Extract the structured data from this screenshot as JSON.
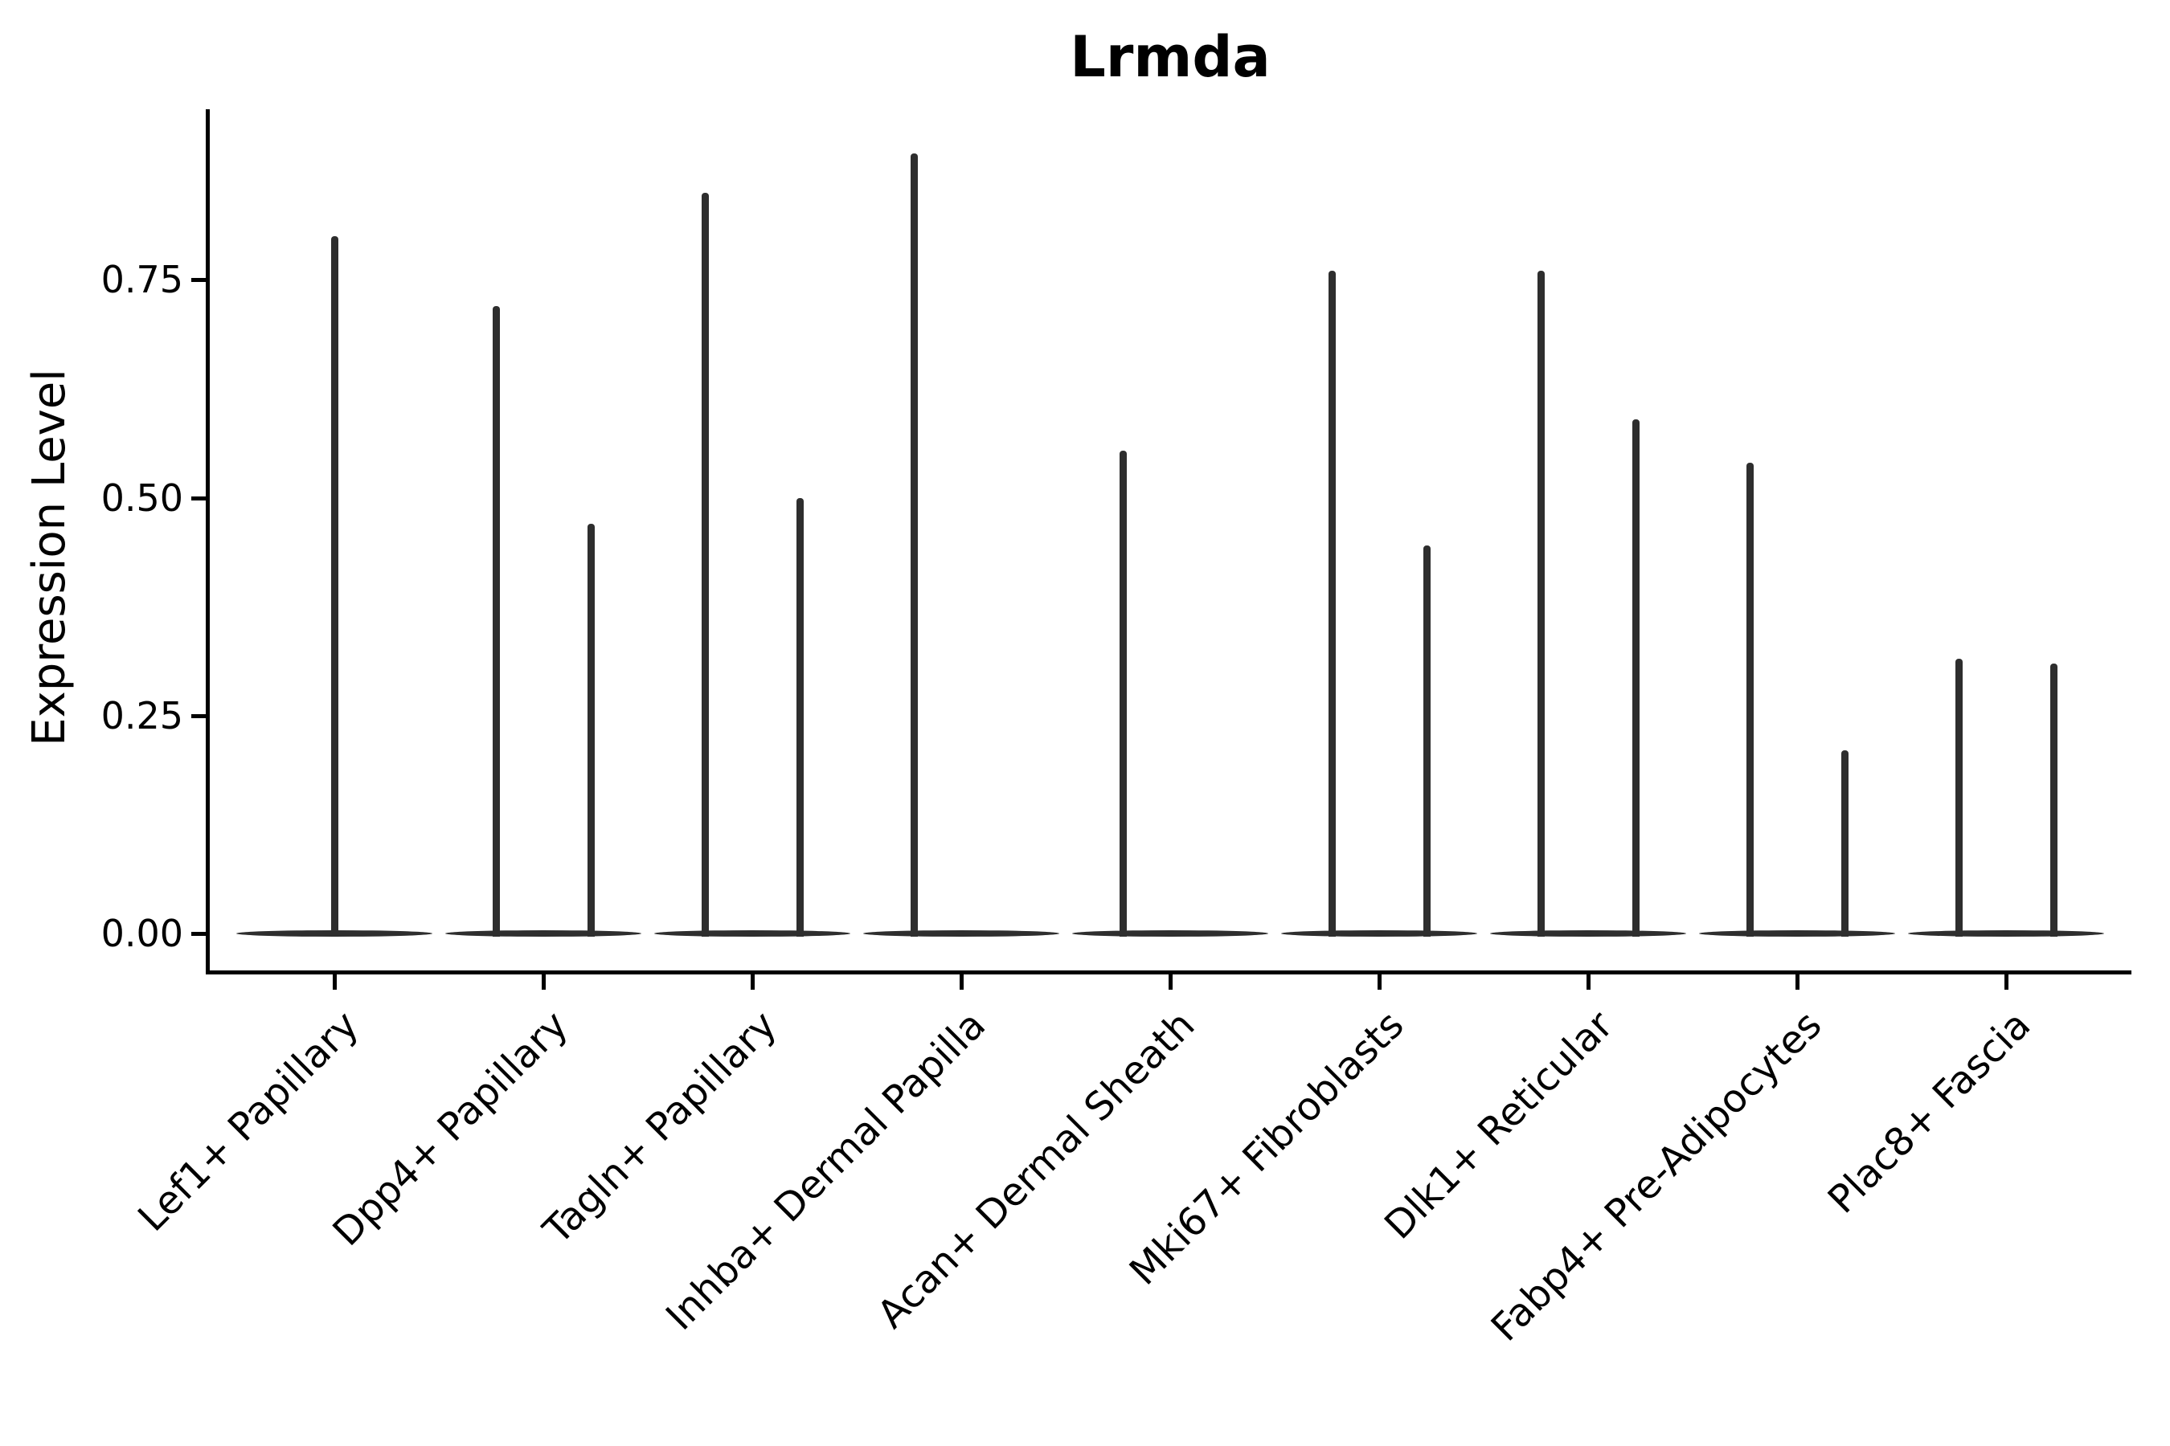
{
  "chart_data": {
    "type": "violin",
    "title": "Lrmda",
    "ylabel": "Expression Level",
    "xlabel": "",
    "yticks": {
      "labels": [
        "0.00",
        "0.25",
        "0.50",
        "0.75"
      ],
      "values": [
        0.0,
        0.25,
        0.5,
        0.75
      ]
    },
    "ylim": [
      -0.045,
      0.943
    ],
    "grid": false,
    "legend": "none",
    "violin_color": "#2e2e2e",
    "axis_color": "#000000",
    "categories": [
      "Lef1+ Papillary",
      "Dpp4+ Papillary",
      "Tagln+ Papillary",
      "Inhba+ Dermal Papilla",
      "Acan+ Dermal Sheath",
      "Mki67+ Fibroblasts",
      "Dlk1+ Reticular",
      "Fabp4+ Pre-Adipocytes",
      "Plac8+ Fascia"
    ],
    "groups": [
      {
        "label": "Lef1+ Papillary",
        "violins": [
          {
            "position": "center",
            "max_expression": 0.8
          }
        ]
      },
      {
        "label": "Dpp4+ Papillary",
        "violins": [
          {
            "position": "left",
            "max_expression": 0.72
          },
          {
            "position": "right",
            "max_expression": 0.47
          }
        ]
      },
      {
        "label": "Tagln+ Papillary",
        "violins": [
          {
            "position": "left",
            "max_expression": 0.85
          },
          {
            "position": "right",
            "max_expression": 0.5
          }
        ]
      },
      {
        "label": "Inhba+ Dermal Papilla",
        "violins": [
          {
            "position": "left",
            "max_expression": 0.895
          }
        ]
      },
      {
        "label": "Acan+ Dermal Sheath",
        "violins": [
          {
            "position": "left",
            "max_expression": 0.554
          }
        ]
      },
      {
        "label": "Mki67+ Fibroblasts",
        "violins": [
          {
            "position": "left",
            "max_expression": 0.76
          },
          {
            "position": "right",
            "max_expression": 0.445
          }
        ]
      },
      {
        "label": "Dlk1+ Reticular",
        "violins": [
          {
            "position": "left",
            "max_expression": 0.76
          },
          {
            "position": "right",
            "max_expression": 0.59
          }
        ]
      },
      {
        "label": "Fabp4+ Pre-Adipocytes",
        "violins": [
          {
            "position": "left",
            "max_expression": 0.54
          },
          {
            "position": "right",
            "max_expression": 0.21
          }
        ]
      },
      {
        "label": "Plac8+ Fascia",
        "violins": [
          {
            "position": "left",
            "max_expression": 0.315
          },
          {
            "position": "right",
            "max_expression": 0.31
          }
        ]
      }
    ]
  }
}
